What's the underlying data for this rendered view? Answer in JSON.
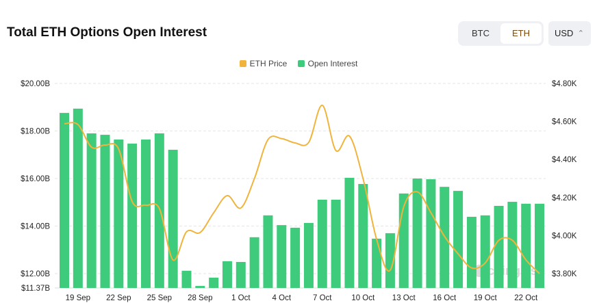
{
  "header": {
    "title": "Total ETH Options Open Interest",
    "toggle": [
      "BTC",
      "ETH"
    ],
    "active": "ETH",
    "currency": "USD"
  },
  "colors": {
    "price": "#f0b43c",
    "oi": "#3ecc7c",
    "grid": "#e6e6e6"
  },
  "watermark": "coinglass",
  "chart_data": {
    "type": "bar+line",
    "title": "Total ETH Options Open Interest",
    "legend": [
      "ETH Price",
      "Open Interest"
    ],
    "legend_position": "top-center",
    "x": [
      "18 Sep",
      "19 Sep",
      "20 Sep",
      "21 Sep",
      "22 Sep",
      "23 Sep",
      "24 Sep",
      "25 Sep",
      "26 Sep",
      "27 Sep",
      "28 Sep",
      "29 Sep",
      "30 Sep",
      "1 Oct",
      "2 Oct",
      "3 Oct",
      "4 Oct",
      "5 Oct",
      "6 Oct",
      "7 Oct",
      "8 Oct",
      "9 Oct",
      "10 Oct",
      "11 Oct",
      "12 Oct",
      "13 Oct",
      "14 Oct",
      "15 Oct",
      "16 Oct",
      "17 Oct",
      "18 Oct",
      "19 Oct",
      "20 Oct",
      "21 Oct",
      "22 Oct",
      "23 Oct"
    ],
    "x_ticks": [
      "19 Sep",
      "22 Sep",
      "25 Sep",
      "28 Sep",
      "1 Oct",
      "4 Oct",
      "7 Oct",
      "10 Oct",
      "13 Oct",
      "16 Oct",
      "19 Oct",
      "22 Oct"
    ],
    "left_axis": {
      "min": 11.37,
      "max": 20,
      "ticks": [
        "$20.00B",
        "$18.00B",
        "$16.00B",
        "$14.00B",
        "$12.00B"
      ],
      "tick_values": [
        20,
        18,
        16,
        14,
        12
      ],
      "min_label": "$11.37B"
    },
    "right_axis": {
      "min": 3.724,
      "max": 4.8,
      "ticks": [
        "$4.80K",
        "$4.60K",
        "$4.40K",
        "$4.20K",
        "$4.00K",
        "$3.80K"
      ],
      "tick_values": [
        4.8,
        4.6,
        4.4,
        4.2,
        4.0,
        3.8
      ]
    },
    "series": [
      {
        "name": "Open Interest",
        "type": "bar",
        "axis": "left",
        "unit": "B USD",
        "values": [
          18.76,
          18.94,
          17.9,
          17.84,
          17.64,
          17.47,
          17.64,
          17.9,
          17.21,
          12.12,
          11.48,
          11.83,
          12.52,
          12.49,
          13.53,
          14.45,
          14.04,
          13.93,
          14.13,
          15.11,
          15.11,
          16.03,
          15.77,
          13.47,
          13.7,
          15.37,
          16.0,
          15.97,
          15.65,
          15.48,
          14.39,
          14.45,
          14.85,
          15.02,
          14.94,
          14.94
        ]
      },
      {
        "name": "ETH Price",
        "type": "line",
        "axis": "right",
        "unit": "K USD",
        "values": [
          4.588,
          4.584,
          4.465,
          4.476,
          4.455,
          4.178,
          4.16,
          4.142,
          3.872,
          4.02,
          4.016,
          4.12,
          4.21,
          4.145,
          4.3,
          4.505,
          4.51,
          4.487,
          4.49,
          4.685,
          4.447,
          4.523,
          4.3,
          3.98,
          3.818,
          4.152,
          4.23,
          4.12,
          3.996,
          3.904,
          3.83,
          3.856,
          3.975,
          3.975,
          3.872,
          3.8
        ]
      }
    ],
    "grid": true
  }
}
